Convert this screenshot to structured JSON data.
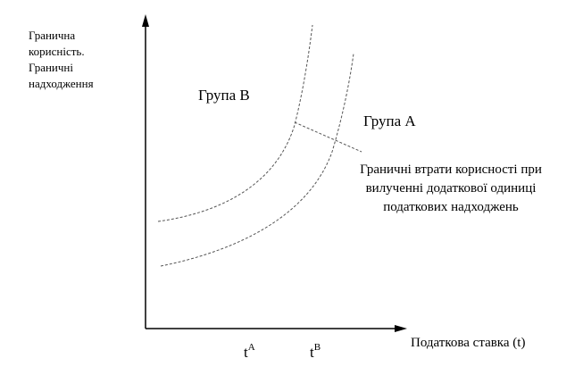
{
  "y_axis_label": [
    "Гранична",
    "корисність.",
    "Граничні",
    "надходження"
  ],
  "group_b": "Група B",
  "group_a": "Група A",
  "annotation": [
    "Граничні втрати корисності при",
    "вилученні додаткової одиниці",
    "податкових надходжень"
  ],
  "x_axis_label": "Податкова ставка (t)",
  "ticks": [
    {
      "base": "t",
      "sup": "A"
    },
    {
      "base": "t",
      "sup": "B"
    }
  ]
}
